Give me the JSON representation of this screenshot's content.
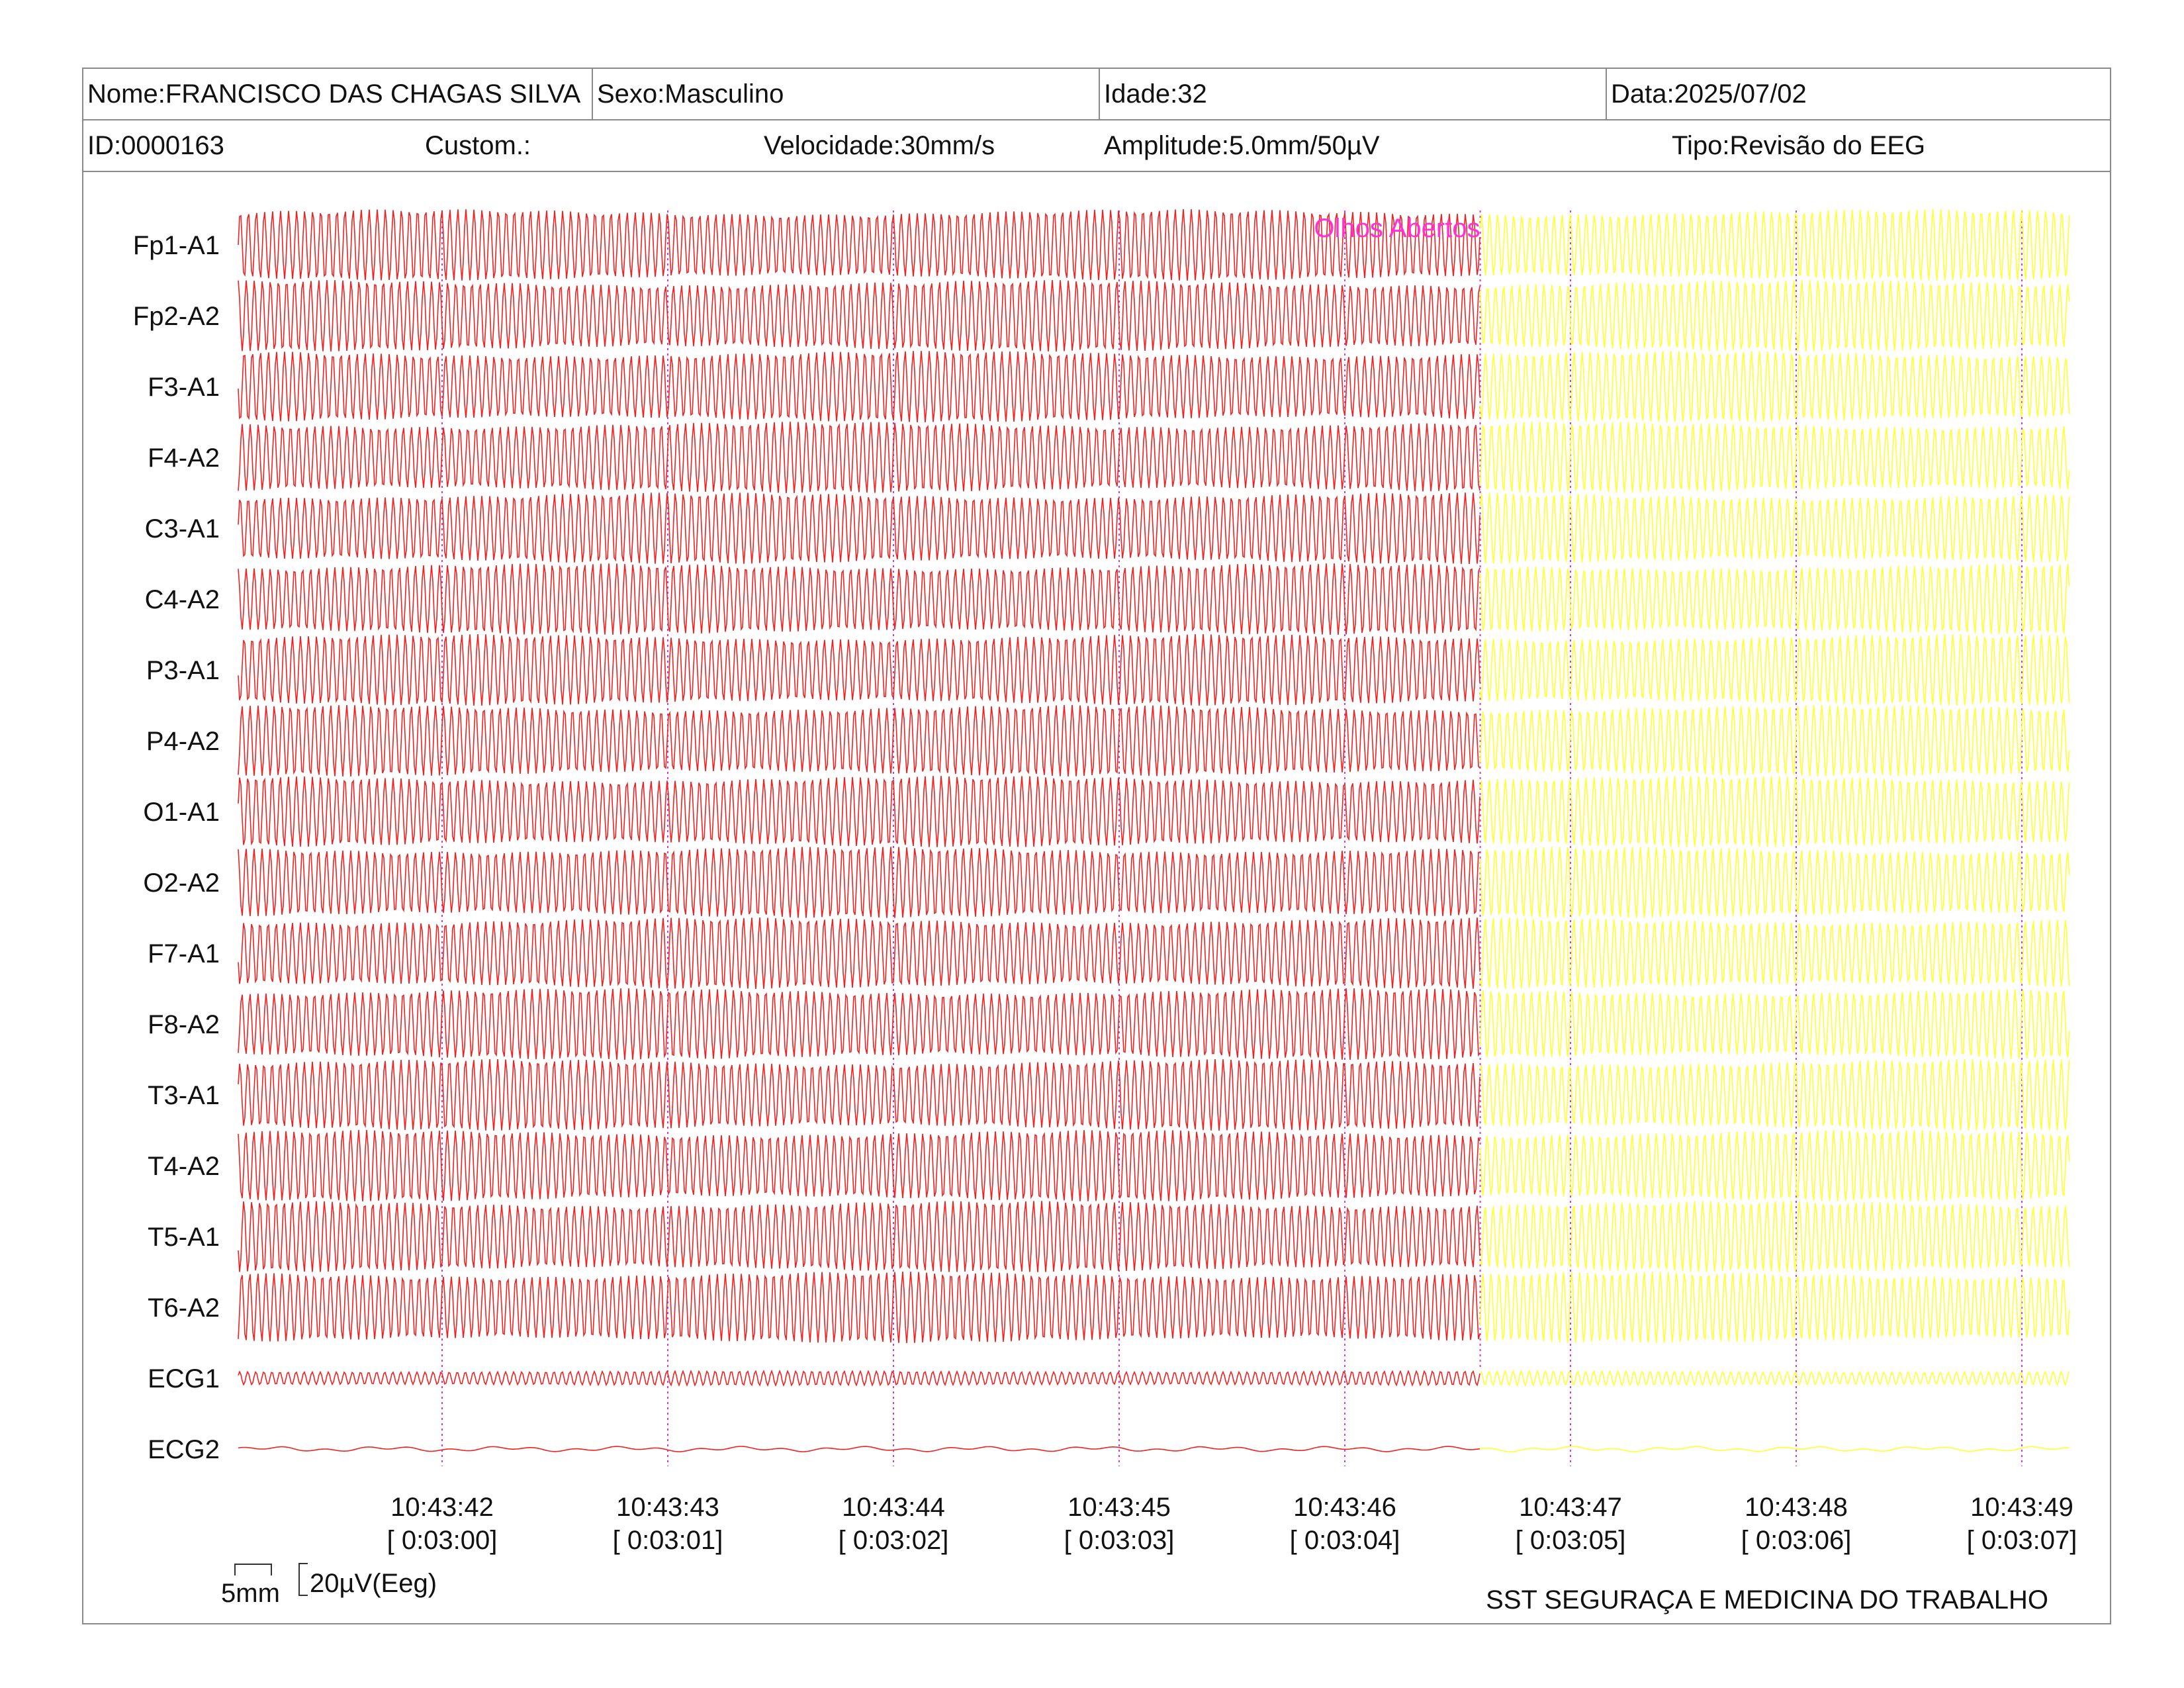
{
  "header": {
    "nome": "Nome:FRANCISCO DAS CHAGAS SILVA",
    "sexo": "Sexo:Masculino",
    "idade": "Idade:32",
    "data": "Data:2025/07/02",
    "id": "ID:0000163",
    "custom": "Custom.:",
    "velocidade": "Velocidade:30mm/s",
    "amplitude": "Amplitude:5.0mm/50µV",
    "tipo": "Tipo:Revisão do EEG"
  },
  "colors": {
    "trace_before": "#ee2222",
    "trace_after": "#ffff33",
    "gridline": "#d33ad3",
    "annotation": "#ff33cc",
    "border": "#8a8a8a"
  },
  "chart_data": {
    "type": "line",
    "title": "",
    "channels": [
      "Fp1-A1",
      "Fp2-A2",
      "F3-A1",
      "F4-A2",
      "C3-A1",
      "C4-A2",
      "P3-A1",
      "P4-A2",
      "O1-A1",
      "O2-A2",
      "F7-A1",
      "F8-A2",
      "T3-A1",
      "T4-A2",
      "T5-A1",
      "T6-A2",
      "ECG1",
      "ECG2"
    ],
    "time_ticks": [
      {
        "clock": "10:43:42",
        "elapsed": "[ 0:03:00]"
      },
      {
        "clock": "10:43:43",
        "elapsed": "[ 0:03:01]"
      },
      {
        "clock": "10:43:44",
        "elapsed": "[ 0:03:02]"
      },
      {
        "clock": "10:43:45",
        "elapsed": "[ 0:03:03]"
      },
      {
        "clock": "10:43:46",
        "elapsed": "[ 0:03:04]"
      },
      {
        "clock": "10:43:47",
        "elapsed": "[ 0:03:05]"
      },
      {
        "clock": "10:43:48",
        "elapsed": "[ 0:03:06]"
      },
      {
        "clock": "10:43:49",
        "elapsed": "[ 0:03:07]"
      }
    ],
    "time_range_s": [
      -0.9,
      7.2
    ],
    "annotation": {
      "text": "Olhos Abertos",
      "time_s": 4.6
    },
    "eeg_frequency_hz": 28,
    "ecg1_frequency_hz": 28,
    "scale": {
      "time_label": "5mm",
      "amp_label": "20µV(Eeg)"
    }
  },
  "footer": {
    "company": "SST SEGURAÇA E MEDICINA DO TRABALHO"
  }
}
